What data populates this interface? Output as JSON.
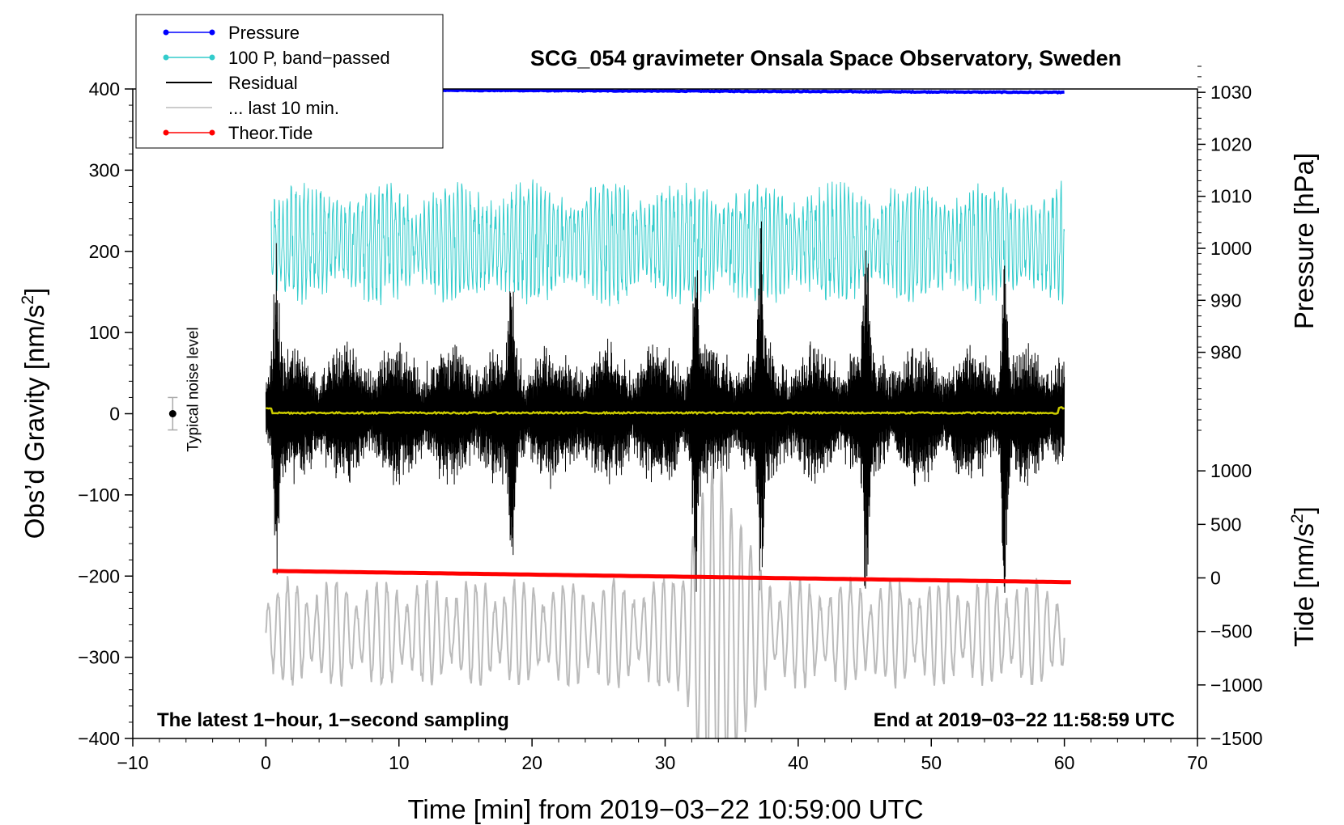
{
  "chart_data": {
    "type": "line",
    "title": "SCG_054 gravimeter Onsala Space Observatory, Sweden",
    "xlabel": "Time [min] from 2019−03−22 10:59:00 UTC",
    "ylabel_left": "Obs’d Gravity [nm/s",
    "ylabel_left_sup": "2",
    "ylabel_left_close": "]",
    "ylabel_right_pressure": "Pressure [hPa]",
    "ylabel_right_tide": "Tide [nm/s",
    "ylabel_right_tide_sup": "2",
    "ylabel_right_tide_close": "]",
    "xlim": [
      -10,
      70
    ],
    "ylim": [
      -400,
      400
    ],
    "pressure_lim": [
      965,
      1035
    ],
    "tide_lim": [
      -1500,
      1500
    ],
    "x_ticks": [
      {
        "value": -10,
        "label": "−10"
      },
      {
        "value": 0,
        "label": "0"
      },
      {
        "value": 10,
        "label": "10"
      },
      {
        "value": 20,
        "label": "20"
      },
      {
        "value": 30,
        "label": "30"
      },
      {
        "value": 40,
        "label": "40"
      },
      {
        "value": 50,
        "label": "50"
      },
      {
        "value": 60,
        "label": "60"
      },
      {
        "value": 70,
        "label": "70"
      }
    ],
    "y_ticks": [
      {
        "value": 400,
        "label": "400"
      },
      {
        "value": 300,
        "label": "300"
      },
      {
        "value": 200,
        "label": "200"
      },
      {
        "value": 100,
        "label": "100"
      },
      {
        "value": 0,
        "label": "0"
      },
      {
        "value": -100,
        "label": "−100"
      },
      {
        "value": -200,
        "label": "−200"
      },
      {
        "value": -300,
        "label": "−300"
      },
      {
        "value": -400,
        "label": "−400"
      }
    ],
    "pressure_ticks": [
      {
        "value": 1030,
        "label": "1030"
      },
      {
        "value": 1020,
        "label": "1020"
      },
      {
        "value": 1010,
        "label": "1010"
      },
      {
        "value": 1000,
        "label": "1000"
      },
      {
        "value": 990,
        "label": "990"
      },
      {
        "value": 980,
        "label": "980"
      }
    ],
    "tide_ticks": [
      {
        "value": 1000,
        "label": "1000"
      },
      {
        "value": 500,
        "label": "500"
      },
      {
        "value": 0,
        "label": "0"
      },
      {
        "value": -500,
        "label": "−500"
      },
      {
        "value": -1000,
        "label": "−1000"
      },
      {
        "value": -1500,
        "label": "−1500"
      }
    ],
    "legend": [
      {
        "label": "Pressure",
        "color": "#0000ff",
        "marker": true
      },
      {
        "label": "100 P, band−passed",
        "color": "#33cccc",
        "marker": true
      },
      {
        "label": "Residual",
        "color": "#000000",
        "marker": false
      },
      {
        "label": "... last 10 min.",
        "color": "#bbbbbb",
        "marker": false
      },
      {
        "label": "Theor.Tide",
        "color": "#ff0000",
        "marker": true
      }
    ],
    "series": [
      {
        "name": "Pressure",
        "axis": "pressure",
        "color": "#0000ff",
        "t_start": 0,
        "t_end": 60,
        "start": 1030.5,
        "end": 1030.0,
        "noise": 0.15
      },
      {
        "name": "100 P, band−passed",
        "axis": "gravity",
        "color": "#33cccc",
        "t_start": 0.4,
        "t_end": 60,
        "center": 210,
        "amplitude": 50
      },
      {
        "name": "Residual",
        "axis": "gravity",
        "color": "#000000",
        "t_start": 0,
        "t_end": 60,
        "center": 0,
        "amplitude": 70,
        "spikes": [
          [
            32.3,
            160
          ],
          [
            37.2,
            165
          ],
          [
            45.1,
            170
          ],
          [
            55.5,
            185
          ],
          [
            0.8,
            150
          ],
          [
            18.5,
            120
          ]
        ]
      },
      {
        "name": "Residual smoothed",
        "axis": "gravity",
        "color": "#cccc00",
        "t_start": 0,
        "t_end": 60,
        "center": 1,
        "amplitude": 2
      },
      {
        "name": "... last 10 min.",
        "axis": "gravity",
        "color": "#bbbbbb",
        "t_start": 0,
        "t_end": 60,
        "center": -270,
        "amplitude": 55,
        "burst_center": 34,
        "burst_amplitude": 150
      },
      {
        "name": "Theor.Tide",
        "axis": "tide",
        "color": "#ff0000",
        "t_start": 0.5,
        "t_end": 60.5,
        "start": 65,
        "end": -40
      }
    ],
    "noise_marker": {
      "x": -7,
      "value": 0,
      "error": 20,
      "label": "Typical noise level"
    },
    "annotations": {
      "left": "The latest 1−hour, 1−second sampling",
      "right": "End at 2019−03−22 11:58:59 UTC"
    }
  }
}
